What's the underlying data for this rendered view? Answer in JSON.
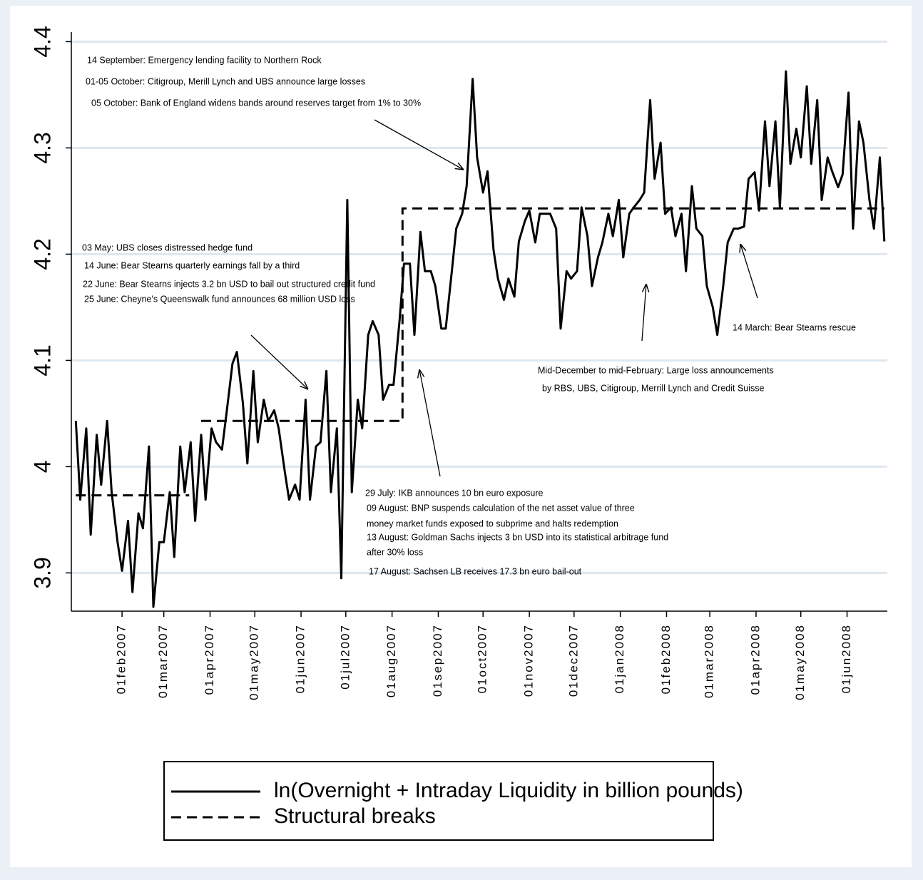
{
  "chart_data": {
    "type": "line",
    "xlim": [
      "2006-12-29",
      "2008-06-28"
    ],
    "ylim": [
      3.864,
      4.409
    ],
    "yticks": [
      3.9,
      4,
      4.1,
      4.2,
      4.3,
      4.4
    ],
    "xticks": [
      {
        "value": "2007-02-01",
        "label": "01feb2007"
      },
      {
        "value": "2007-03-01",
        "label": "01mar2007"
      },
      {
        "value": "2007-04-01",
        "label": "01apr2007"
      },
      {
        "value": "2007-05-01",
        "label": "01may2007"
      },
      {
        "value": "2007-06-01",
        "label": "01jun2007"
      },
      {
        "value": "2007-07-01",
        "label": "01jul2007"
      },
      {
        "value": "2007-08-01",
        "label": "01aug2007"
      },
      {
        "value": "2007-09-01",
        "label": "01sep2007"
      },
      {
        "value": "2007-10-01",
        "label": "01oct2007"
      },
      {
        "value": "2007-11-01",
        "label": "01nov2007"
      },
      {
        "value": "2007-12-01",
        "label": "01dec2007"
      },
      {
        "value": "2008-01-01",
        "label": "01jan2008"
      },
      {
        "value": "2008-02-01",
        "label": "01feb2008"
      },
      {
        "value": "2008-03-01",
        "label": "01mar2008"
      },
      {
        "value": "2008-04-01",
        "label": "01apr2008"
      },
      {
        "value": "2008-05-01",
        "label": "01may2008"
      },
      {
        "value": "2008-06-01",
        "label": "01jun2008"
      }
    ],
    "grid": true,
    "series": [
      {
        "name": "ln(Overnight + Intraday Liquidity in billion pounds)",
        "color": "#000000",
        "line_style": "solid",
        "x": [
          "2007-01-01",
          "2007-01-04",
          "2007-01-08",
          "2007-01-11",
          "2007-01-15",
          "2007-01-18",
          "2007-01-22",
          "2007-01-25",
          "2007-01-29",
          "2007-02-01",
          "2007-02-05",
          "2007-02-08",
          "2007-02-12",
          "2007-02-15",
          "2007-02-19",
          "2007-02-22",
          "2007-02-26",
          "2007-03-01",
          "2007-03-05",
          "2007-03-08",
          "2007-03-12",
          "2007-03-15",
          "2007-03-19",
          "2007-03-22",
          "2007-03-26",
          "2007-03-29",
          "2007-04-02",
          "2007-04-05",
          "2007-04-09",
          "2007-04-12",
          "2007-04-16",
          "2007-04-19",
          "2007-04-23",
          "2007-04-26",
          "2007-04-30",
          "2007-05-03",
          "2007-05-07",
          "2007-05-10",
          "2007-05-14",
          "2007-05-17",
          "2007-05-21",
          "2007-05-24",
          "2007-05-28",
          "2007-05-31",
          "2007-06-04",
          "2007-06-07",
          "2007-06-11",
          "2007-06-14",
          "2007-06-18",
          "2007-06-21",
          "2007-06-25",
          "2007-06-28",
          "2007-07-02",
          "2007-07-05",
          "2007-07-09",
          "2007-07-12",
          "2007-07-16",
          "2007-07-19",
          "2007-07-23",
          "2007-07-26",
          "2007-07-30",
          "2007-08-02",
          "2007-08-06",
          "2007-08-09",
          "2007-08-13",
          "2007-08-16",
          "2007-08-20",
          "2007-08-23",
          "2007-08-27",
          "2007-08-30",
          "2007-09-03",
          "2007-09-06",
          "2007-09-10",
          "2007-09-13",
          "2007-09-17",
          "2007-09-20",
          "2007-09-24",
          "2007-09-27",
          "2007-10-01",
          "2007-10-04",
          "2007-10-08",
          "2007-10-11",
          "2007-10-15",
          "2007-10-18",
          "2007-10-22",
          "2007-10-25",
          "2007-10-29",
          "2007-11-01",
          "2007-11-05",
          "2007-11-08",
          "2007-11-12",
          "2007-11-15",
          "2007-11-19",
          "2007-11-22",
          "2007-11-26",
          "2007-11-29",
          "2007-12-03",
          "2007-12-06",
          "2007-12-10",
          "2007-12-13",
          "2007-12-17",
          "2007-12-20",
          "2007-12-24",
          "2007-12-27",
          "2007-12-31",
          "2008-01-03",
          "2008-01-07",
          "2008-01-10",
          "2008-01-14",
          "2008-01-17",
          "2008-01-21",
          "2008-01-24",
          "2008-01-28",
          "2008-01-31",
          "2008-02-04",
          "2008-02-07",
          "2008-02-11",
          "2008-02-14",
          "2008-02-18",
          "2008-02-21",
          "2008-02-25",
          "2008-02-28",
          "2008-03-03",
          "2008-03-06",
          "2008-03-10",
          "2008-03-13",
          "2008-03-17",
          "2008-03-20",
          "2008-03-24",
          "2008-03-27",
          "2008-03-31",
          "2008-04-03",
          "2008-04-07",
          "2008-04-10",
          "2008-04-14",
          "2008-04-17",
          "2008-04-21",
          "2008-04-24",
          "2008-04-28",
          "2008-05-01",
          "2008-05-05",
          "2008-05-08",
          "2008-05-12",
          "2008-05-15",
          "2008-05-19",
          "2008-05-22",
          "2008-05-26",
          "2008-05-29",
          "2008-06-02",
          "2008-06-05",
          "2008-06-09",
          "2008-06-12",
          "2008-06-16",
          "2008-06-19",
          "2008-06-23",
          "2008-06-26"
        ],
        "values": [
          4.043,
          3.969,
          4.036,
          3.936,
          4.03,
          3.983,
          4.043,
          3.976,
          3.929,
          3.902,
          3.949,
          3.882,
          3.956,
          3.942,
          4.019,
          3.868,
          3.929,
          3.929,
          3.976,
          3.915,
          4.019,
          3.976,
          4.023,
          3.949,
          4.03,
          3.969,
          4.036,
          4.023,
          4.016,
          4.05,
          4.097,
          4.108,
          4.06,
          4.003,
          4.09,
          4.023,
          4.063,
          4.043,
          4.053,
          4.036,
          3.996,
          3.969,
          3.983,
          3.969,
          4.063,
          3.969,
          4.019,
          4.023,
          4.09,
          3.976,
          4.036,
          3.895,
          4.251,
          3.976,
          4.063,
          4.036,
          4.124,
          4.137,
          4.124,
          4.063,
          4.077,
          4.077,
          4.137,
          4.191,
          4.191,
          4.124,
          4.221,
          4.184,
          4.184,
          4.17,
          4.13,
          4.13,
          4.183,
          4.224,
          4.238,
          4.264,
          4.365,
          4.291,
          4.258,
          4.278,
          4.204,
          4.177,
          4.157,
          4.177,
          4.16,
          4.212,
          4.231,
          4.241,
          4.211,
          4.238,
          4.238,
          4.238,
          4.224,
          4.13,
          4.184,
          4.177,
          4.184,
          4.244,
          4.217,
          4.17,
          4.197,
          4.211,
          4.238,
          4.217,
          4.251,
          4.197,
          4.238,
          4.244,
          4.251,
          4.258,
          4.345,
          4.271,
          4.305,
          4.238,
          4.244,
          4.217,
          4.238,
          4.184,
          4.264,
          4.224,
          4.217,
          4.17,
          4.15,
          4.124,
          4.17,
          4.211,
          4.224,
          4.224,
          4.226,
          4.271,
          4.277,
          4.241,
          4.325,
          4.264,
          4.325,
          4.244,
          4.372,
          4.285,
          4.318,
          4.291,
          4.358,
          4.285,
          4.345,
          4.251,
          4.291,
          4.278,
          4.263,
          4.275,
          4.352,
          4.224,
          4.325,
          4.305,
          4.251,
          4.224,
          4.291,
          4.212
        ]
      },
      {
        "name": "Structural breaks",
        "color": "#000000",
        "line_style": "dashed",
        "x": [
          "2007-01-01",
          "2007-03-18",
          "2007-03-22",
          "2007-03-26",
          "2007-08-08",
          "2007-08-08",
          "2008-06-26"
        ],
        "values": [
          3.973,
          3.973,
          null,
          4.043,
          4.043,
          4.243,
          4.243
        ]
      }
    ],
    "annotations": [
      "14 September: Emergency lending facility to Northern Rock",
      "01-05 October: Citigroup, Merill Lynch and UBS announce large losses",
      "05 October: Bank of England widens bands around reserves target from 1% to 30%",
      "03 May: UBS closes distressed hedge fund",
      "14 June: Bear Stearns quarterly earnings fall by a third",
      "22 June: Bear Stearns injects 3.2 bn USD to bail out structured credit fund",
      "25 June: Cheyne's Queenswalk fund announces 68 million USD loss",
      "Mid-December to mid-February: Large loss announcements",
      "by RBS, UBS, Citigroup, Merrill Lynch and Credit Suisse",
      "14 March: Bear Stearns rescue",
      "29 July: IKB announces 10 bn euro exposure",
      "09 August: BNP suspends calculation of the net asset value of three",
      "money market funds exposed to subprime and halts redemption",
      "13 August: Goldman Sachs injects 3 bn USD into its statistical arbitrage fund",
      "after 30% loss",
      "17 August: Sachsen LB receives 17.3 bn euro bail-out"
    ]
  }
}
